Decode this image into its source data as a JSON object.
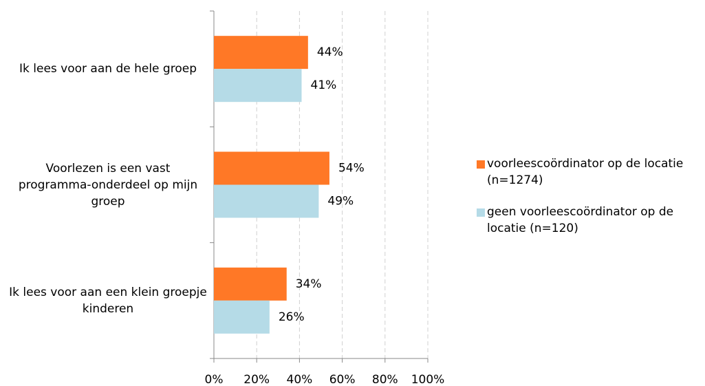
{
  "chart_data": {
    "type": "bar",
    "orientation": "horizontal",
    "categories": [
      "Ik lees voor aan de hele groep",
      "Voorlezen is een vast programma-onderdeel op mijn groep",
      "Ik lees voor aan een klein groepje kinderen"
    ],
    "series": [
      {
        "name": "voorleescoördinator op de locatie (n=1274)",
        "color": "#ff7826",
        "values": [
          44,
          54,
          34
        ],
        "value_labels": [
          "44%",
          "54%",
          "34%"
        ]
      },
      {
        "name": "geen voorleescoördinator op de locatie (n=120)",
        "color": "#b5dbe7",
        "values": [
          41,
          49,
          26
        ],
        "value_labels": [
          "41%",
          "49%",
          "26%"
        ]
      }
    ],
    "xlim": [
      0,
      100
    ],
    "xticks": [
      {
        "value": 0,
        "label": "0%"
      },
      {
        "value": 20,
        "label": "20%"
      },
      {
        "value": 40,
        "label": "40%"
      },
      {
        "value": 60,
        "label": "60%"
      },
      {
        "value": 80,
        "label": "80%"
      },
      {
        "value": 100,
        "label": "100%"
      }
    ],
    "grid": true,
    "legend": "right"
  }
}
